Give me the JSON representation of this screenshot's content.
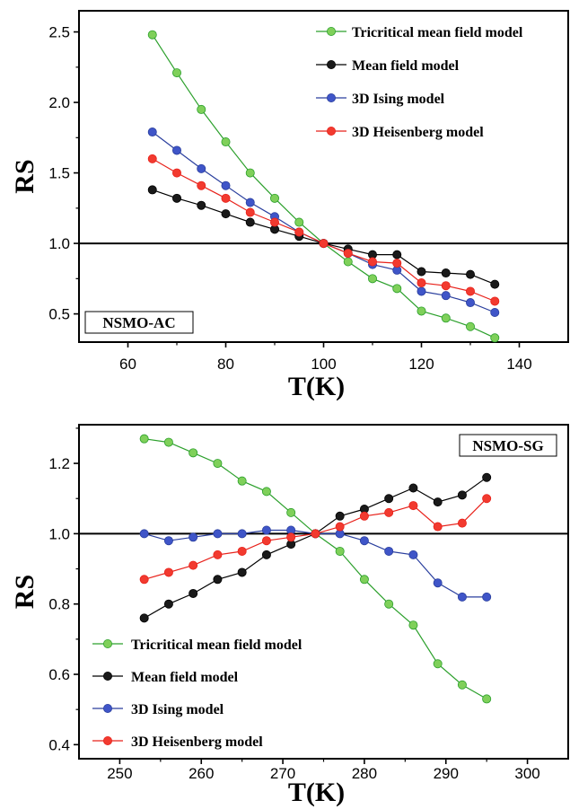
{
  "chart_data": [
    {
      "type": "line",
      "panel_label": "NSMO-AC",
      "xlabel": "T(K)",
      "ylabel": "RS",
      "xlim": [
        50,
        150
      ],
      "ylim": [
        0.3,
        2.65
      ],
      "xticks": [
        60,
        80,
        100,
        120,
        140
      ],
      "yticks": [
        0.5,
        1.0,
        1.5,
        2.0,
        2.5
      ],
      "ytick_labels": [
        "0.5",
        "1.0",
        "1.5",
        "2.0",
        "2.5"
      ],
      "reference_line": 1.0,
      "legend_position": "top-right",
      "x": [
        65,
        70,
        75,
        80,
        85,
        90,
        95,
        100,
        105,
        110,
        115,
        120,
        125,
        130,
        135
      ],
      "series": [
        {
          "name": "Tricritical mean field model",
          "color": "#2ca02c",
          "marker": "#7fd05a",
          "values": [
            2.48,
            2.21,
            1.95,
            1.72,
            1.5,
            1.32,
            1.15,
            1.0,
            0.87,
            0.75,
            0.68,
            0.52,
            0.47,
            0.41,
            0.33
          ]
        },
        {
          "name": "Mean field model",
          "color": "#000000",
          "marker": "#1a1a1a",
          "values": [
            1.38,
            1.32,
            1.27,
            1.21,
            1.15,
            1.1,
            1.05,
            1.0,
            0.96,
            0.92,
            0.92,
            0.8,
            0.79,
            0.78,
            0.71
          ]
        },
        {
          "name": "3D Ising model",
          "color": "#2a3f9e",
          "marker": "#3f55c8",
          "values": [
            1.79,
            1.66,
            1.53,
            1.41,
            1.29,
            1.19,
            1.08,
            1.0,
            0.93,
            0.85,
            0.81,
            0.66,
            0.63,
            0.58,
            0.51
          ]
        },
        {
          "name": "3D Heisenberg model",
          "color": "#e8221b",
          "marker": "#f23a2f",
          "values": [
            1.6,
            1.5,
            1.41,
            1.32,
            1.22,
            1.15,
            1.08,
            1.0,
            0.93,
            0.87,
            0.86,
            0.72,
            0.7,
            0.66,
            0.59
          ]
        }
      ]
    },
    {
      "type": "line",
      "panel_label": "NSMO-SG",
      "xlabel": "T(K)",
      "ylabel": "RS",
      "xlim": [
        245,
        305
      ],
      "ylim": [
        0.36,
        1.31
      ],
      "xticks": [
        250,
        260,
        270,
        280,
        290,
        300
      ],
      "yticks": [
        0.4,
        0.6,
        0.8,
        1.0,
        1.2
      ],
      "ytick_labels": [
        "0.4",
        "0.6",
        "0.8",
        "1.0",
        "1.2"
      ],
      "reference_line": 1.0,
      "legend_position": "bottom-left",
      "x": [
        253,
        256,
        259,
        262,
        265,
        268,
        271,
        274,
        277,
        280,
        283,
        286,
        289,
        292,
        295
      ],
      "series": [
        {
          "name": "Tricritical mean field model",
          "color": "#2ca02c",
          "marker": "#7fd05a",
          "values": [
            1.27,
            1.26,
            1.23,
            1.2,
            1.15,
            1.12,
            1.06,
            1.0,
            0.95,
            0.87,
            0.8,
            0.74,
            0.63,
            0.57,
            0.53
          ]
        },
        {
          "name": "Mean field model",
          "color": "#000000",
          "marker": "#1a1a1a",
          "values": [
            0.76,
            0.8,
            0.83,
            0.87,
            0.89,
            0.94,
            0.97,
            1.0,
            1.05,
            1.07,
            1.1,
            1.13,
            1.09,
            1.11,
            1.16
          ]
        },
        {
          "name": "3D Ising model",
          "color": "#2a3f9e",
          "marker": "#3f55c8",
          "values": [
            1.0,
            0.98,
            0.99,
            1.0,
            1.0,
            1.01,
            1.01,
            1.0,
            1.0,
            0.98,
            0.95,
            0.94,
            0.86,
            0.82,
            0.82
          ]
        },
        {
          "name": "3D Heisenberg model",
          "color": "#e8221b",
          "marker": "#f23a2f",
          "values": [
            0.87,
            0.89,
            0.91,
            0.94,
            0.95,
            0.98,
            0.99,
            1.0,
            1.02,
            1.05,
            1.06,
            1.08,
            1.02,
            1.03,
            1.1
          ]
        }
      ]
    }
  ]
}
